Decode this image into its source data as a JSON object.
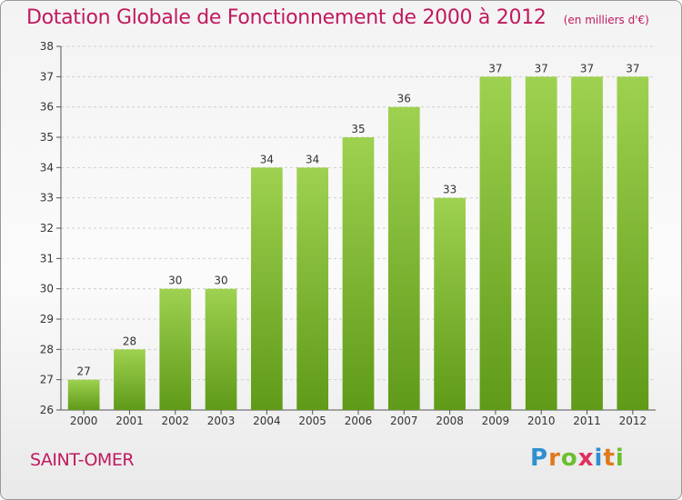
{
  "title": "Dotation Globale de Fonctionnement de 2000 à 2012",
  "subtitle": "(en milliers d'€)",
  "city": "SAINT-OMER",
  "logo_text": "Proxiti",
  "colors": {
    "accent": "#c0195e",
    "bar_top": "#9ed150",
    "bar_bottom": "#5f9a18"
  },
  "chart_data": {
    "type": "bar",
    "title": "Dotation Globale de Fonctionnement de 2000 à 2012",
    "subtitle": "(en milliers d'€)",
    "categories": [
      "2000",
      "2001",
      "2002",
      "2003",
      "2004",
      "2005",
      "2006",
      "2007",
      "2008",
      "2009",
      "2010",
      "2011",
      "2012"
    ],
    "values": [
      27,
      28,
      30,
      30,
      34,
      34,
      35,
      36,
      33,
      37,
      37,
      37,
      37
    ],
    "ylim": [
      26,
      38
    ],
    "yticks": [
      26,
      27,
      28,
      29,
      30,
      31,
      32,
      33,
      34,
      35,
      36,
      37,
      38
    ],
    "grid": true,
    "data_labels": true,
    "legend": "none"
  }
}
